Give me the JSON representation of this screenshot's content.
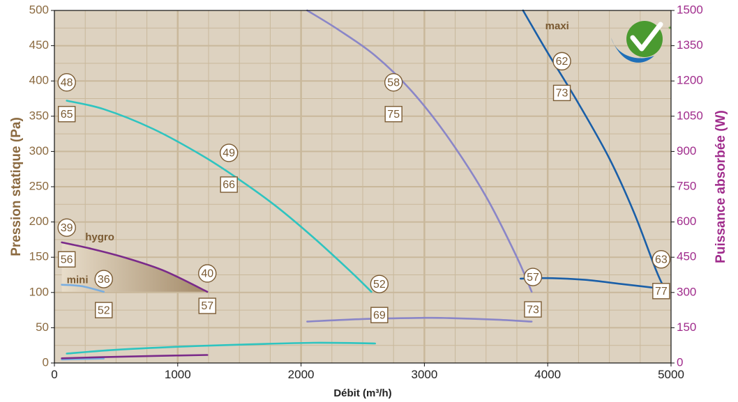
{
  "chart_data": {
    "type": "line",
    "xlabel": "Débit (m³/h)",
    "ylabel_left": "Pression statique (Pa)",
    "ylabel_right": "Puissance absorbée (W)",
    "xlim": [
      0,
      5000
    ],
    "ylim_left": [
      0,
      500
    ],
    "ylim_right": [
      0,
      1500
    ],
    "x_ticks": [
      "0",
      "1000",
      "2000",
      "3000",
      "4000",
      "5000"
    ],
    "y_left_ticks": [
      "0",
      "50",
      "100",
      "150",
      "200",
      "250",
      "300",
      "350",
      "400",
      "450",
      "500"
    ],
    "y_right_ticks": [
      "0",
      "150",
      "300",
      "450",
      "600",
      "750",
      "900",
      "1050",
      "1200",
      "1350",
      "1500"
    ],
    "grid": true,
    "logo_asterisk": "*",
    "colors": {
      "background": "#ddd2c0",
      "grid": "#c9b89b",
      "left_axis_text": "#8b6a40",
      "right_axis_text": "#a02c8c",
      "annotation": "#7a5a32",
      "mini": "#7aaee0",
      "hygro": "#7a2a8a",
      "teal": "#2ec4c0",
      "lavender": "#8a86c8",
      "maxi": "#1a5fa8",
      "hygro_fill": "#a89070"
    },
    "series": [
      {
        "name": "mini",
        "kind": "pressure",
        "color": "mini",
        "points": [
          [
            60,
            111
          ],
          [
            220,
            109
          ],
          [
            400,
            101
          ]
        ]
      },
      {
        "name": "mini",
        "kind": "power",
        "color": "mini",
        "points": [
          [
            60,
            15
          ],
          [
            400,
            19
          ]
        ]
      },
      {
        "name": "hygro",
        "kind": "pressure",
        "color": "hygro",
        "points": [
          [
            60,
            171
          ],
          [
            300,
            162
          ],
          [
            600,
            148
          ],
          [
            900,
            130
          ],
          [
            1240,
            101
          ]
        ]
      },
      {
        "name": "hygro",
        "kind": "power",
        "color": "hygro",
        "points": [
          [
            60,
            20
          ],
          [
            400,
            25
          ],
          [
            800,
            30
          ],
          [
            1240,
            34
          ]
        ]
      },
      {
        "kind": "pressure",
        "color": "teal",
        "points": [
          [
            100,
            372
          ],
          [
            400,
            360
          ],
          [
            800,
            332
          ],
          [
            1200,
            294
          ],
          [
            1500,
            260
          ],
          [
            1800,
            222
          ],
          [
            2100,
            178
          ],
          [
            2400,
            130
          ],
          [
            2570,
            101
          ]
        ]
      },
      {
        "kind": "power",
        "color": "teal",
        "points": [
          [
            100,
            40
          ],
          [
            500,
            56
          ],
          [
            1000,
            69
          ],
          [
            1500,
            78
          ],
          [
            2100,
            86
          ],
          [
            2600,
            83
          ]
        ]
      },
      {
        "kind": "pressure",
        "color": "lavender",
        "points": [
          [
            2050,
            500
          ],
          [
            2300,
            473
          ],
          [
            2600,
            436
          ],
          [
            2900,
            385
          ],
          [
            3200,
            318
          ],
          [
            3500,
            236
          ],
          [
            3750,
            150
          ],
          [
            3870,
            101
          ]
        ]
      },
      {
        "kind": "power",
        "color": "lavender",
        "points": [
          [
            2050,
            176
          ],
          [
            2500,
            187
          ],
          [
            3000,
            192
          ],
          [
            3200,
            191
          ],
          [
            3600,
            184
          ],
          [
            3870,
            176
          ]
        ]
      },
      {
        "name": "maxi",
        "kind": "pressure",
        "color": "maxi",
        "points": [
          [
            3800,
            500
          ],
          [
            4000,
            440
          ],
          [
            4250,
            368
          ],
          [
            4500,
            290
          ],
          [
            4700,
            213
          ],
          [
            4880,
            131
          ],
          [
            4960,
            101
          ]
        ]
      },
      {
        "kind": "power",
        "color": "maxi",
        "points": [
          [
            3780,
            359
          ],
          [
            4000,
            361
          ],
          [
            4300,
            354
          ],
          [
            4600,
            336
          ],
          [
            4960,
            314
          ]
        ]
      }
    ],
    "circle_annotations": [
      {
        "text": "48",
        "x": 100,
        "y": 398
      },
      {
        "text": "39",
        "x": 100,
        "y": 192
      },
      {
        "text": "36",
        "x": 400,
        "y": 119
      },
      {
        "text": "40",
        "x": 1240,
        "y": 127
      },
      {
        "text": "49",
        "x": 1415,
        "y": 298
      },
      {
        "text": "52",
        "x": 2635,
        "y": 112
      },
      {
        "text": "58",
        "x": 2750,
        "y": 398
      },
      {
        "text": "57",
        "x": 3880,
        "y": 122
      },
      {
        "text": "62",
        "x": 4115,
        "y": 428
      },
      {
        "text": "63",
        "x": 4920,
        "y": 147
      }
    ],
    "square_annotations": [
      {
        "text": "65",
        "x": 100,
        "y": 353
      },
      {
        "text": "56",
        "x": 100,
        "y": 147
      },
      {
        "text": "52",
        "x": 400,
        "y": 75
      },
      {
        "text": "57",
        "x": 1240,
        "y": 81
      },
      {
        "text": "66",
        "x": 1415,
        "y": 253
      },
      {
        "text": "69",
        "x": 2635,
        "y": 68
      },
      {
        "text": "75",
        "x": 2750,
        "y": 353
      },
      {
        "text": "73",
        "x": 3880,
        "y": 76
      },
      {
        "text": "73",
        "x": 4115,
        "y": 383
      },
      {
        "text": "77",
        "x": 4920,
        "y": 102
      }
    ],
    "curve_labels": [
      {
        "text": "hygro",
        "x": 250,
        "y": 178
      },
      {
        "text": "mini",
        "x": 100,
        "y": 117
      },
      {
        "text": "maxi",
        "x": 3980,
        "y": 477
      }
    ]
  }
}
